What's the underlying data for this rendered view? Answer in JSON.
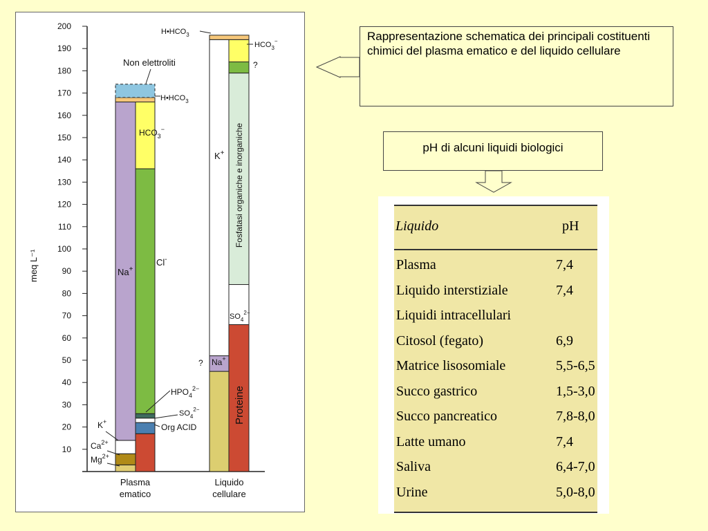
{
  "chart_data": {
    "type": "bar",
    "stacked": true,
    "ylabel": "meq L⁻¹",
    "ylim": [
      0,
      200
    ],
    "yticks": [
      10,
      20,
      30,
      40,
      50,
      60,
      70,
      80,
      90,
      100,
      110,
      120,
      130,
      140,
      150,
      160,
      170,
      180,
      190,
      200
    ],
    "categories": [
      "Plasma ematico",
      "Liquido cellulare"
    ],
    "category_labels": [
      [
        "Plasma",
        "ematico"
      ],
      [
        "Liquido",
        "cellulare"
      ]
    ],
    "bars": [
      {
        "category": "Plasma ematico",
        "columns": [
          {
            "segments": [
              {
                "name": "Mg2+",
                "from": 0,
                "to": 3,
                "color": "#e1cd73"
              },
              {
                "name": "Ca2+",
                "from": 3,
                "to": 8,
                "color": "#b08a18"
              },
              {
                "name": "K+",
                "from": 8,
                "to": 14,
                "color": "#ffffff"
              },
              {
                "name": "Na+",
                "from": 14,
                "to": 166,
                "color": "#b9a4cd"
              }
            ]
          },
          {
            "segments": [
              {
                "name": "Proteine",
                "from": 0,
                "to": 17,
                "color": "#cc4a33"
              },
              {
                "name": "Org ACID",
                "from": 17,
                "to": 22,
                "color": "#4a7fb0"
              },
              {
                "name": "SO4 2-",
                "from": 22,
                "to": 24,
                "color": "#ffffff"
              },
              {
                "name": "HPO4 2-",
                "from": 24,
                "to": 26,
                "color": "#3e6b5e"
              },
              {
                "name": "Cl-",
                "from": 26,
                "to": 136,
                "color": "#7dbb43"
              },
              {
                "name": "HCO3-",
                "from": 136,
                "to": 166,
                "color": "#ffff66"
              }
            ]
          }
        ],
        "top_segments": [
          {
            "name": "H•HCO3",
            "from": 166,
            "to": 168,
            "color": "#f6c77a"
          },
          {
            "name": "Non elettroliti",
            "from": 168,
            "to": 174,
            "color": "#8ec6e0"
          }
        ]
      },
      {
        "category": "Liquido cellulare",
        "columns": [
          {
            "segments": [
              {
                "name": "?",
                "from": 0,
                "to": 45,
                "color": "#dcce70"
              },
              {
                "name": "Na+",
                "from": 45,
                "to": 52,
                "color": "#b9a4cd"
              },
              {
                "name": "K+",
                "from": 52,
                "to": 194,
                "color": "#ffffff"
              }
            ]
          },
          {
            "segments": [
              {
                "name": "Proteine",
                "from": 0,
                "to": 66,
                "color": "#cc4a33"
              },
              {
                "name": "SO4 2-",
                "from": 66,
                "to": 84,
                "color": "#ffffff"
              },
              {
                "name": "Fosfatasi organiche e inorganiche",
                "from": 84,
                "to": 179,
                "color": "#d9ecd9"
              },
              {
                "name": "?",
                "from": 179,
                "to": 184,
                "color": "#7dbb43"
              },
              {
                "name": "HCO3-",
                "from": 184,
                "to": 194,
                "color": "#ffff66"
              }
            ]
          }
        ],
        "top_segments": [
          {
            "name": "H•HCO3",
            "from": 194,
            "to": 196,
            "color": "#f6c77a"
          }
        ]
      }
    ],
    "labels": {
      "non_elettroliti": "Non elettroliti",
      "hhco3": "H•HCO",
      "hco3": "HCO",
      "na": "Na",
      "k": "K",
      "cl": "Cl",
      "hpo4": "HPO",
      "so4": "SO",
      "org_acid": "Org ACID",
      "ca": "Ca",
      "mg": "Mg",
      "q": "?",
      "fosfatasi": "Fosfatasi organiche e inorganiche",
      "proteine": "Proteine"
    }
  },
  "callouts": {
    "plasma_text": "Rappresentazione schematica dei principali costituenti chimici del plasma ematico e del liquido cellulare",
    "ph_text": "pH di alcuni liquidi biologici"
  },
  "ph_table": {
    "header": [
      "Liquido",
      "pH"
    ],
    "rows": [
      {
        "liquido": "Plasma",
        "ph": "7,4"
      },
      {
        "liquido": "Liquido interstiziale",
        "ph": "7,4"
      },
      {
        "liquido": "Liquidi intracellulari",
        "ph": ""
      },
      {
        "liquido": "Citosol (fegato)",
        "ph": "6,9"
      },
      {
        "liquido": "Matrice lisosomiale",
        "ph": "5,5-6,5"
      },
      {
        "liquido": "Succo gastrico",
        "ph": "1,5-3,0"
      },
      {
        "liquido": "Succo pancreatico",
        "ph": "7,8-8,0"
      },
      {
        "liquido": "Latte umano",
        "ph": "7,4"
      },
      {
        "liquido": "Saliva",
        "ph": "6,4-7,0"
      },
      {
        "liquido": "Urine",
        "ph": "5,0-8,0"
      }
    ]
  }
}
